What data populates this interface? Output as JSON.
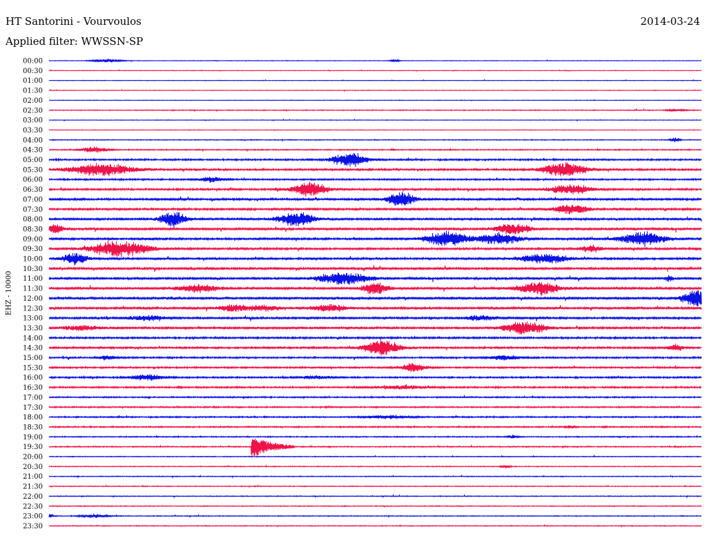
{
  "header": {
    "station": "HT Santorini - Vourvoulos",
    "date": "2014-03-24",
    "filter": "Applied filter: WWSSN-SP",
    "channel": "EHZ - 10000"
  },
  "colors": {
    "even_trace": "#0b12e6",
    "odd_trace": "#f0134a",
    "text": "#000000"
  },
  "chart_data": {
    "type": "helicorder",
    "time_labels": [
      "00:00",
      "00:30",
      "01:00",
      "01:30",
      "02:00",
      "02:30",
      "03:00",
      "03:30",
      "04:00",
      "04:30",
      "05:00",
      "05:30",
      "06:00",
      "06:30",
      "07:00",
      "07:30",
      "08:00",
      "08:30",
      "09:00",
      "09:30",
      "10:00",
      "10:30",
      "11:00",
      "11:30",
      "12:00",
      "12:30",
      "13:00",
      "13:30",
      "14:00",
      "14:30",
      "15:00",
      "15:30",
      "16:00",
      "16:30",
      "17:00",
      "17:30",
      "18:00",
      "18:30",
      "19:00",
      "19:30",
      "20:00",
      "20:30",
      "21:00",
      "21:30",
      "22:00",
      "22:30",
      "23:00",
      "23:30"
    ],
    "line_minutes": 30,
    "noise_level": [
      0.2,
      0.2,
      0.2,
      0.2,
      0.2,
      0.3,
      0.2,
      0.2,
      0.3,
      0.4,
      0.6,
      0.7,
      0.6,
      0.7,
      0.8,
      0.8,
      0.8,
      0.9,
      0.8,
      0.8,
      0.8,
      0.9,
      0.9,
      0.9,
      1.0,
      0.9,
      0.8,
      0.8,
      0.7,
      0.7,
      0.6,
      0.6,
      0.6,
      0.6,
      0.5,
      0.5,
      0.5,
      0.5,
      0.4,
      0.4,
      0.3,
      0.3,
      0.3,
      0.3,
      0.3,
      0.3,
      0.3,
      0.3
    ],
    "events": [
      {
        "line": 0,
        "x": 0.09,
        "amp": 3,
        "width": 0.03
      },
      {
        "line": 0,
        "x": 0.53,
        "amp": 2,
        "width": 0.01
      },
      {
        "line": 5,
        "x": 0.96,
        "amp": 2,
        "width": 0.02
      },
      {
        "line": 8,
        "x": 0.96,
        "amp": 4,
        "width": 0.01
      },
      {
        "line": 9,
        "x": 0.07,
        "amp": 5,
        "width": 0.03
      },
      {
        "line": 10,
        "x": 0.46,
        "amp": 12,
        "width": 0.04
      },
      {
        "line": 11,
        "x": 0.08,
        "amp": 10,
        "width": 0.08
      },
      {
        "line": 11,
        "x": 0.79,
        "amp": 12,
        "width": 0.05
      },
      {
        "line": 12,
        "x": 0.25,
        "amp": 4,
        "width": 0.03
      },
      {
        "line": 13,
        "x": 0.4,
        "amp": 12,
        "width": 0.04
      },
      {
        "line": 13,
        "x": 0.8,
        "amp": 8,
        "width": 0.05
      },
      {
        "line": 14,
        "x": 0.54,
        "amp": 14,
        "width": 0.03
      },
      {
        "line": 15,
        "x": 0.8,
        "amp": 8,
        "width": 0.04
      },
      {
        "line": 16,
        "x": 0.19,
        "amp": 12,
        "width": 0.03
      },
      {
        "line": 16,
        "x": 0.38,
        "amp": 12,
        "width": 0.04
      },
      {
        "line": 17,
        "x": 0.01,
        "amp": 7,
        "width": 0.02
      },
      {
        "line": 17,
        "x": 0.71,
        "amp": 9,
        "width": 0.04
      },
      {
        "line": 18,
        "x": 0.61,
        "amp": 12,
        "width": 0.05
      },
      {
        "line": 18,
        "x": 0.69,
        "amp": 9,
        "width": 0.05
      },
      {
        "line": 18,
        "x": 0.91,
        "amp": 12,
        "width": 0.05
      },
      {
        "line": 19,
        "x": 0.11,
        "amp": 12,
        "width": 0.07
      },
      {
        "line": 19,
        "x": 0.83,
        "amp": 5,
        "width": 0.03
      },
      {
        "line": 20,
        "x": 0.04,
        "amp": 9,
        "width": 0.03
      },
      {
        "line": 20,
        "x": 0.76,
        "amp": 7,
        "width": 0.06
      },
      {
        "line": 22,
        "x": 0.45,
        "amp": 10,
        "width": 0.06
      },
      {
        "line": 22,
        "x": 0.95,
        "amp": 5,
        "width": 0.01
      },
      {
        "line": 23,
        "x": 0.23,
        "amp": 6,
        "width": 0.05
      },
      {
        "line": 23,
        "x": 0.5,
        "amp": 10,
        "width": 0.03
      },
      {
        "line": 23,
        "x": 0.75,
        "amp": 10,
        "width": 0.05
      },
      {
        "line": 24,
        "x": 0.99,
        "amp": 14,
        "width": 0.03
      },
      {
        "line": 25,
        "x": 0.28,
        "amp": 5,
        "width": 0.03
      },
      {
        "line": 25,
        "x": 0.33,
        "amp": 4,
        "width": 0.05
      },
      {
        "line": 25,
        "x": 0.43,
        "amp": 6,
        "width": 0.04
      },
      {
        "line": 26,
        "x": 0.15,
        "amp": 4,
        "width": 0.04
      },
      {
        "line": 26,
        "x": 0.66,
        "amp": 4,
        "width": 0.04
      },
      {
        "line": 27,
        "x": 0.05,
        "amp": 4,
        "width": 0.05
      },
      {
        "line": 27,
        "x": 0.73,
        "amp": 11,
        "width": 0.05
      },
      {
        "line": 29,
        "x": 0.51,
        "amp": 14,
        "width": 0.04
      },
      {
        "line": 29,
        "x": 0.96,
        "amp": 5,
        "width": 0.02
      },
      {
        "line": 30,
        "x": 0.09,
        "amp": 4,
        "width": 0.02
      },
      {
        "line": 30,
        "x": 0.7,
        "amp": 4,
        "width": 0.04
      },
      {
        "line": 31,
        "x": 0.56,
        "amp": 7,
        "width": 0.03
      },
      {
        "line": 32,
        "x": 0.15,
        "amp": 5,
        "width": 0.04
      },
      {
        "line": 32,
        "x": 0.41,
        "amp": 3,
        "width": 0.04
      },
      {
        "line": 33,
        "x": 0.54,
        "amp": 3,
        "width": 0.06
      },
      {
        "line": 36,
        "x": 0.52,
        "amp": 3,
        "width": 0.05
      },
      {
        "line": 37,
        "x": 0.8,
        "amp": 3,
        "width": 0.01
      },
      {
        "line": 38,
        "x": 0.71,
        "amp": 3,
        "width": 0.01
      },
      {
        "line": 39,
        "x": 0.31,
        "amp": 17,
        "width": 0.03,
        "impulsive": true
      },
      {
        "line": 41,
        "x": 0.7,
        "amp": 3,
        "width": 0.01
      },
      {
        "line": 46,
        "x": 0.0,
        "amp": 3,
        "width": 0.01
      },
      {
        "line": 46,
        "x": 0.07,
        "amp": 3,
        "width": 0.03
      }
    ]
  }
}
